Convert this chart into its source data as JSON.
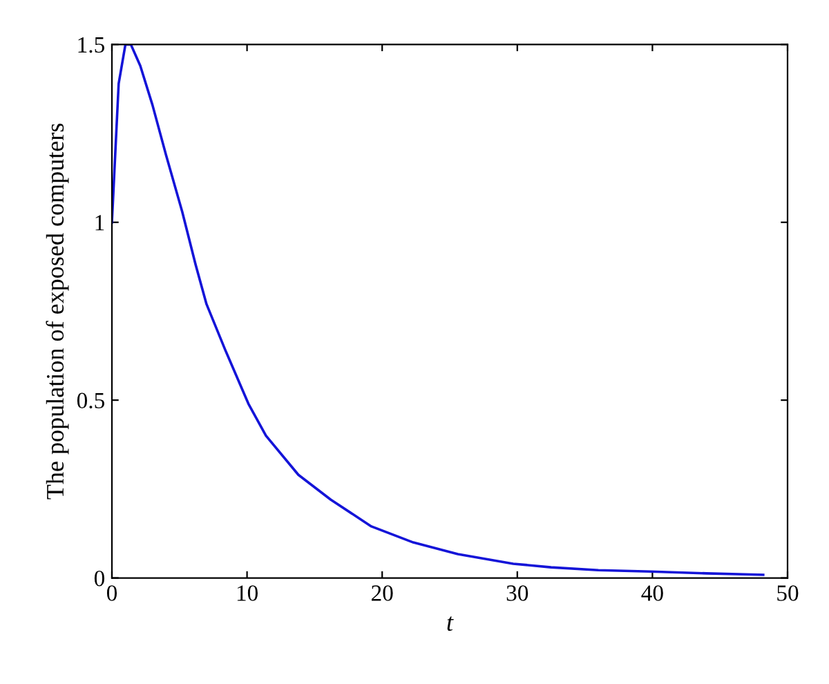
{
  "chart_data": {
    "type": "line",
    "xlabel": "t",
    "ylabel": "The population of exposed computers",
    "series": [
      {
        "color": "#1414d8",
        "x": [
          0,
          0.5,
          1,
          1.4,
          2.1,
          3.0,
          4.0,
          5.2,
          6.2,
          7.0,
          8.4,
          10.1,
          11.4,
          13.8,
          16.2,
          19.2,
          22.3,
          25.6,
          29.7,
          32.5,
          36,
          39.9,
          44,
          48.2
        ],
        "values": [
          1.0,
          1.39,
          1.5,
          1.5,
          1.44,
          1.33,
          1.19,
          1.03,
          0.88,
          0.77,
          0.64,
          0.49,
          0.4,
          0.29,
          0.22,
          0.145,
          0.1,
          0.067,
          0.04,
          0.03,
          0.022,
          0.018,
          0.013,
          0.009
        ]
      }
    ],
    "xlim": [
      0,
      50
    ],
    "ylim": [
      0,
      1.5
    ],
    "xticks": [
      0,
      10,
      20,
      30,
      40,
      50
    ],
    "yticks": [
      0,
      0.5,
      1,
      1.5
    ],
    "grid": false
  }
}
